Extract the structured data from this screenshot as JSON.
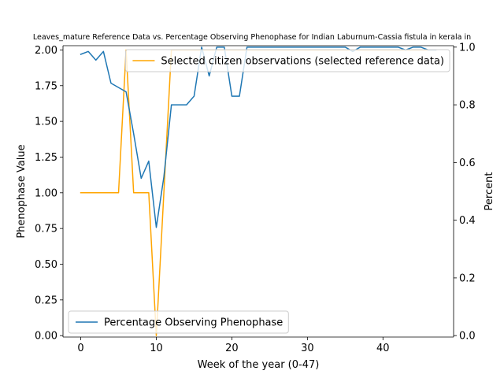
{
  "chart_data": {
    "type": "line",
    "title": "Leaves_mature Reference Data vs. Percentage Observing Phenophase for Indian Laburnum-Cassia fistula in kerala in",
    "xlabel": "Week of the year (0-47)",
    "ylabel_left": "Phenophase Value",
    "ylabel_right": "Percent",
    "xlim": [
      -2.35,
      49.35
    ],
    "ylim_left": [
      -0.01,
      2.03
    ],
    "ylim_right": [
      -0.005,
      1.005
    ],
    "xticks": [
      0,
      10,
      20,
      30,
      40
    ],
    "yticks_left": [
      "0.00",
      "0.25",
      "0.50",
      "0.75",
      "1.00",
      "1.25",
      "1.50",
      "1.75",
      "2.00"
    ],
    "yticks_right": [
      "0.0",
      "0.2",
      "0.4",
      "0.6",
      "0.8",
      "1.0"
    ],
    "grid": false,
    "x": [
      0,
      1,
      2,
      3,
      4,
      5,
      6,
      7,
      8,
      9,
      10,
      11,
      12,
      13,
      14,
      15,
      16,
      17,
      18,
      19,
      20,
      21,
      22,
      23,
      24,
      25,
      26,
      27,
      28,
      29,
      30,
      31,
      32,
      33,
      34,
      35,
      36,
      37,
      38,
      39,
      40,
      41,
      42,
      43,
      44,
      45,
      46,
      47
    ],
    "series": [
      {
        "name": "Selected citizen observations (selected reference data)",
        "axis": "left",
        "color": "#ffa500",
        "legend_position": "upper-right",
        "values": [
          1,
          1,
          1,
          1,
          1,
          1,
          2,
          1,
          1,
          1,
          0,
          1,
          2,
          2,
          2,
          2,
          2,
          2,
          2,
          2,
          2,
          2,
          2,
          2,
          2,
          2,
          2,
          2,
          2,
          2,
          2,
          2,
          2,
          2,
          2,
          2,
          2,
          2,
          2,
          2,
          2,
          2,
          2,
          2,
          2,
          2,
          2,
          2
        ]
      },
      {
        "name": "Percentage Observing Phenophase",
        "axis": "right",
        "color": "#1f77b4",
        "legend_position": "lower-left",
        "values": [
          0.975,
          0.985,
          0.955,
          0.985,
          0.875,
          0.86,
          0.845,
          0.7,
          0.545,
          0.605,
          0.375,
          0.55,
          0.8,
          0.8,
          0.8,
          0.83,
          1.0,
          0.9,
          1.0,
          1.0,
          0.83,
          0.83,
          1.0,
          1.0,
          1.0,
          1.0,
          1.0,
          1.0,
          1.0,
          1.0,
          1.0,
          1.0,
          1.0,
          1.0,
          1.0,
          1.0,
          0.985,
          1.0,
          1.0,
          1.0,
          1.0,
          1.0,
          1.0,
          0.99,
          1.0,
          1.0,
          0.99,
          0.99
        ]
      }
    ]
  }
}
